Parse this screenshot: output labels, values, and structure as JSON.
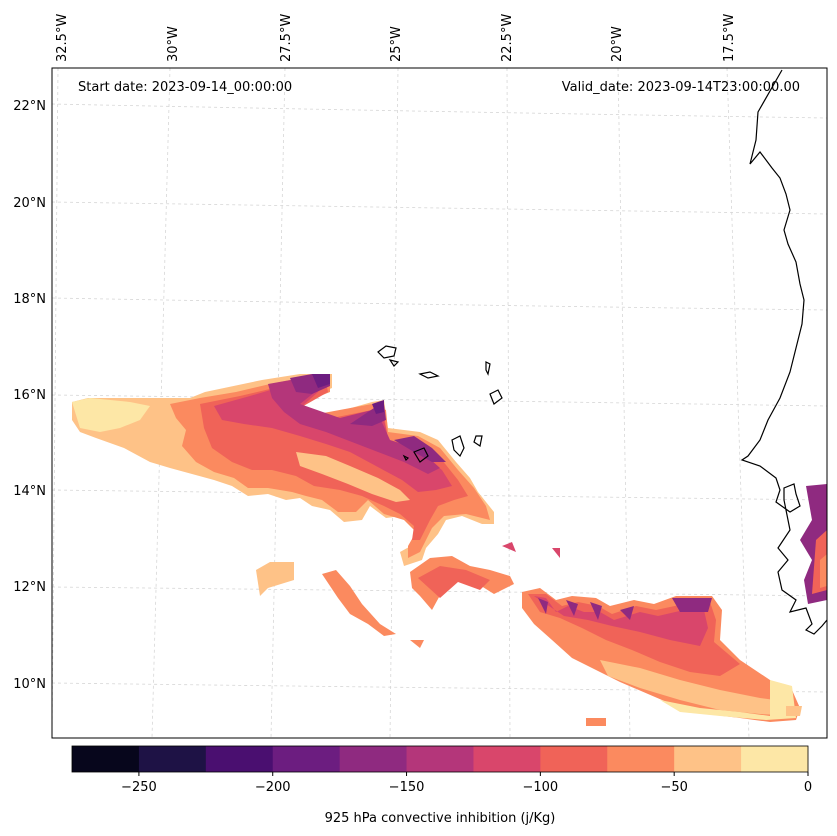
{
  "annotations": {
    "start_date": "Start date: 2023-09-14_00:00:00",
    "valid_date": "Valid_date: 2023-09-14T23:00:00.00"
  },
  "longitude_labels": [
    "32.5°W",
    "30°W",
    "27.5°W",
    "25°W",
    "22.5°W",
    "20°W",
    "17.5°W"
  ],
  "latitude_labels": [
    "22°N",
    "20°N",
    "18°N",
    "16°N",
    "14°N",
    "12°N",
    "10°N"
  ],
  "colorbar": {
    "label": "925 hPa convective inhibition (j/Kg)",
    "tick_labels": [
      "−250",
      "−200",
      "−150",
      "−100",
      "−50",
      "0"
    ],
    "levels": [
      -275,
      -250,
      -225,
      -200,
      -175,
      -150,
      -125,
      -100,
      -75,
      -50,
      -25,
      0
    ],
    "colors": [
      "#07061c",
      "#1e1245",
      "#4a0f70",
      "#6c1d80",
      "#8f2a80",
      "#b4367a",
      "#d9466b",
      "#f06358",
      "#fb8a5f",
      "#fec287",
      "#fde7a6"
    ]
  },
  "colors": {
    "coastline": "#000000",
    "gridline": "#cccccc"
  }
}
